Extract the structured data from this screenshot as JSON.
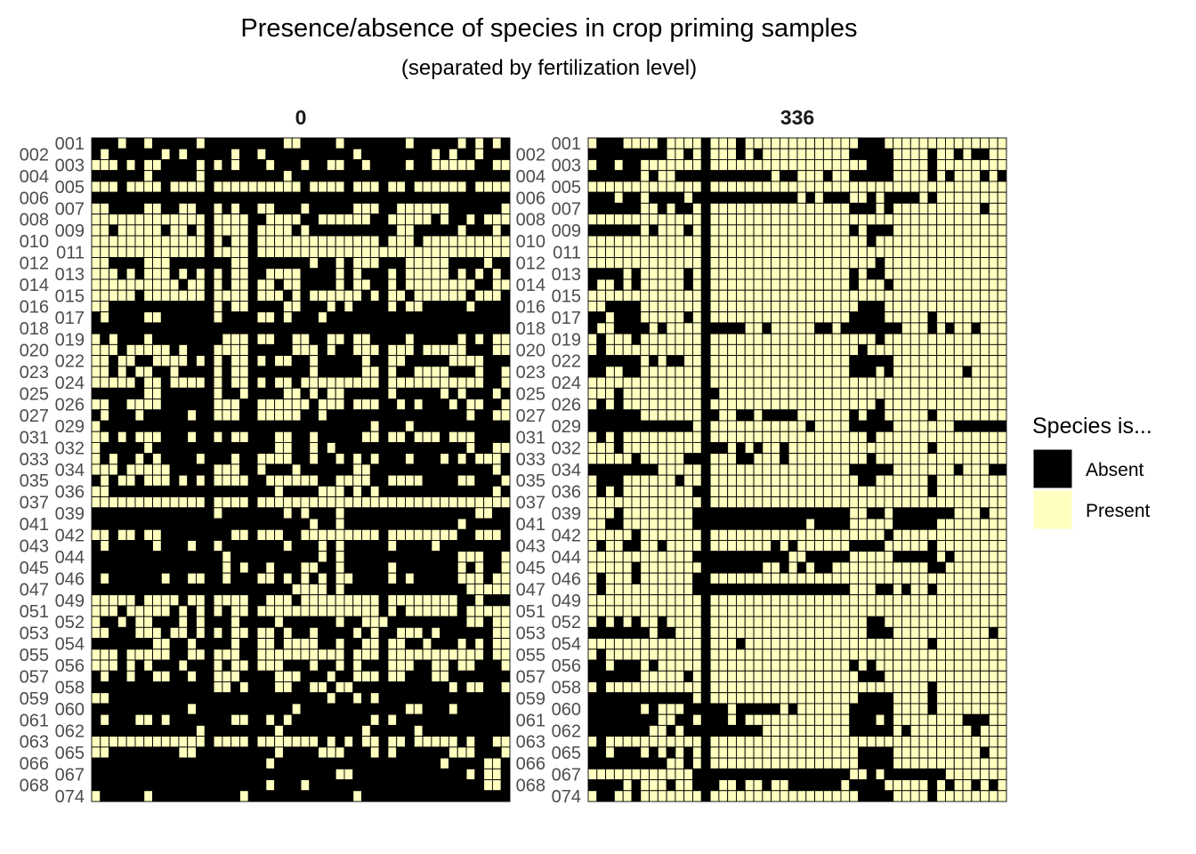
{
  "chart_data": {
    "type": "heatmap",
    "title": "Presence/absence of species in crop priming samples",
    "subtitle": "(separated by fertilization level)",
    "xlabel": "",
    "ylabel": "",
    "grid": true,
    "legend": {
      "title": "Species is...",
      "placement": "right",
      "entries": [
        {
          "label": "Absent",
          "color": "#000000"
        },
        {
          "label": "Present",
          "color": "#FFFFBF"
        }
      ]
    },
    "n_species_columns": 48,
    "sample_labels": [
      "001",
      "002",
      "003",
      "004",
      "005",
      "006",
      "007",
      "008",
      "009",
      "010",
      "011",
      "012",
      "013",
      "014",
      "015",
      "016",
      "017",
      "018",
      "019",
      "020",
      "022",
      "023",
      "024",
      "025",
      "026",
      "027",
      "029",
      "031",
      "032",
      "033",
      "034",
      "035",
      "036",
      "037",
      "039",
      "041",
      "042",
      "043",
      "044",
      "045",
      "046",
      "047",
      "049",
      "051",
      "052",
      "053",
      "054",
      "055",
      "056",
      "057",
      "058",
      "059",
      "060",
      "061",
      "062",
      "063",
      "065",
      "066",
      "067",
      "068",
      "074"
    ],
    "panels": [
      {
        "facet_label": "0",
        "present_species_columns": [
          "3,6,12,22,23,28,36,42,44,46",
          "1,8,10,16,19,30,39,41,44",
          "0-2,4,6,7,12,14,16,20,24,27,28,31,36,39-43,46,47",
          "6,12,22",
          "0-2,4-7,9-12,14-23,25-28,30-32,34,35,37-42,44-47",
          "",
          "0,1,6,7,10,11,14,16,19,20,24,30-32,35-40,47",
          "0-12,14-17,20-23,26-31,34-38,40,43,45-47",
          "0,1,3-7,9,10,12,14-17,19-22,24,35,36,42,46",
          "0-12,14,16,17,19-32,34-36,38-47",
          "0-12,14-17,19-47",
          "0,1,6-8,16,17,25,28,30-32,36-40,45",
          "0-2,4,6-8,10,12,14,16,17,20-23,28,30,34,36-40,42,44,46",
          "0-9,11,12,14,16,17,19,20,22,23,28,30,31,34,36-43,46,47",
          "0-4,6-12,14-17,19-21,23,25-30,32,34,35,37-42,44-46",
          "0,1,14,16,17,22,23,27,29,34,36,37,43",
          "1,6,7,14,19,20,22,26",
          "",
          "0,2,6,15-17,19,20,23,24,27,28,30,31,36,42,44,46,47",
          "0-2,4-8,10,14-17,23-25,27,30-32,34-36,38-42,46,47",
          "0,1,3,4,7-10,12,14,16,17,19,21,22,25,31,34,35,41-44",
          "0,1,3,5,6,9,14,16,17,25,31,32,34,37-40,44,47",
          "0-4,6,7,9-12,14,16,17,19,21,22,24-32,34-44,47",
          "6,7,14,17,22,23,25,27,28,34,40,42,46",
          "0,1,4-7,14-16,19-24,26-28,30-32,35,37,41,43,44,47",
          "1,5,11,14-16,19-23,26,43,46,47",
          "0,32,36",
          "0,1,3,5-7,11,14,16,17,21,22,25,31,32,34,35,37-39,41-43",
          "0,6,21,22,25,27,43,46,47",
          "0,2,5,7,12,16,19-22,25,28,30,32,36,40,42,44-46",
          "0-2,4-8,14-16,19,23,30,31,46",
          "1,3,4,6-8,10,12,14-17,20-25,28-31,34-37,42,43,47",
          "0,1,21,26-28,30,32,46",
          "0-12,14-17,19-47",
          "14,22,24,28,44,45",
          "25,28,42",
          "0,1,3,4,6,7,16,17,19-21,24-32,34-41,44-46",
          "1,7,11,14,22,26,28,34,39",
          "15,26,28,42-44,47",
          "15,17,20,24,25,28,34,42,44,47",
          "1,8,11,12,15,19,20,22,24,26,28,29,34,36,42-44,46,47",
          "23-26,28,43-47",
          "0-4,6-9,11,12,14-17,20-22,24-32,34-41,44",
          "0-2,4-8,10,12,14,16,17,19-32,34,36-41,43-47",
          "0,3,5,6,10,12,16,21,28,31-33,43,44,46,47",
          "0,1,5-7,9,10,12,14,16,17,19,20,22,25,30,32,35-37,39,46,47",
          "7,8,11,16,19,20,22-25,28,31,32,34,35,38,42,44,46,47",
          "0-2,4-8,11,12,14-16,19-28,30-32,34-44,46,47",
          "0-2,4,6,10,14,16,17,19-21,25,28,30,34-36,39,40,42,43,47",
          "1,4,7,8,11,14-16,21-23,27,30-32,34,35,39,40",
          "14,15,17,21,22,25,26,28,29,41,43,44,47",
          "0,1,27,30,32",
          "11,23,36,37,41",
          "1,5,6,8,16,17,20,22,32,34",
          "12,21,31,37",
          "0-12,14-17,19-25,27,29,31,32,34,35,37-41,43,46,47",
          "0,1,10,11,21,26-28,32,34,41-43,47",
          "20,40,45,46",
          "28,29,43,45,46",
          "20,24,45,46",
          "0,6,17,30"
        ]
      },
      {
        "facet_label": "336",
        "absent_species_columns": [
          "1-3,8,13,17,31-33",
          "0-8,11,13,17,19,30-34,39,42,44,45",
          "1,2,4,5,13,32-34,39",
          "0-5,7,10-20,22,23,27,30-34,39,41,45,47",
          "13",
          "0-2,4,5,7-10,12-23,25,27-29,32,34-37,39",
          "0-5,8,10,11,13,30-32,34,45",
          "13",
          "0-5,7,11,13,30,32-34",
          "13,32",
          "13",
          "13,33",
          "0-3,5,11,13,30,32,33",
          "0,3,5,11,13,30,34",
          "13",
          "2-5,13,31-33",
          "0,1,3-5,11,13,30-33,39",
          "0,3-6,8,13-17,20,26,27,29-35,39,41,44",
          "1,5,13,33",
          "1,13,31",
          "0-5,7,9,10,13,30-34",
          "0,1,4,5,13,30-32,34,43",
          "13",
          "3,13,14",
          "1,3,13,33",
          "0-5,13,14,17,18,20-23,30,32,33,39",
          "0-11,13,25,30-34,42-47",
          "1,3,13,32",
          "3,13-15,17,19,22,39",
          "5,11-13,17,18,22,32",
          "0-7,13,30-34,42,46,47",
          "1-3,10,13,31,32,39",
          "1,3,12,13,39",
          "13",
          "3,12-29,32,33,35-41,45",
          "2,3,12-24,26-29,35-39",
          "5,13,34",
          "1,4,5,8,13,21,23,30-33,39",
          "12-22,25-29,35-39,41",
          "5,13-19,22,24,26,27,39,40",
          "1,5,12,13",
          "1,12-29,33,34,36,39",
          "13",
          "13",
          "1,3,5,8,13,32,33",
          "0-6,8,9,13,32-34,46",
          "13,17,39",
          "1,13",
          "0,1,3-5,7,13,30,32",
          "0-5,11,13,31-33",
          "1,13,39",
          "0-11,13,31-34,39",
          "0-5,7,11-15,17-21,23,30-34,39",
          "0-7,10,11,13-15,17,30-32,34,43-45",
          "0-6,9,11-19,30-34,36,44",
          "1,13",
          "0,1,3-5,7,9,11,13,31-34,45",
          "0-8,11,13,31-34",
          "12-29,32,34-40",
          "0-3,5,9,12-14,17,20,23-28,30-33,39,41,44,46",
          "1,2,5,13,31-34,39"
        ]
      }
    ]
  }
}
